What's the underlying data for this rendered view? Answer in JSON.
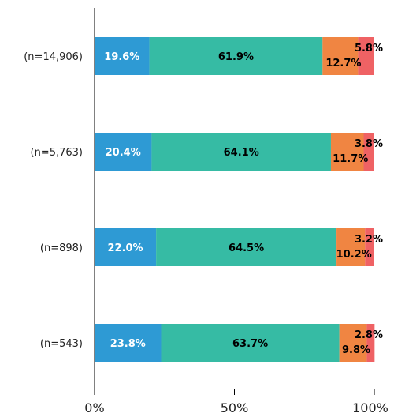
{
  "chart_data": {
    "type": "bar",
    "orientation": "horizontal",
    "stacked": true,
    "categories": [
      "(n=14,906)",
      "(n=5,763)",
      "(n=898)",
      "(n=543)"
    ],
    "series": [
      {
        "color": "#2e9ad4",
        "values": [
          19.6,
          20.4,
          22.0,
          23.8
        ],
        "labels": [
          "19.6%",
          "20.4%",
          "22.0%",
          "23.8%"
        ]
      },
      {
        "color": "#36bba4",
        "values": [
          61.9,
          64.1,
          64.5,
          63.7
        ],
        "labels": [
          "61.9%",
          "64.1%",
          "64.5%",
          "63.7%"
        ]
      },
      {
        "color": "#f08542",
        "values": [
          12.7,
          11.7,
          10.2,
          9.8
        ],
        "labels": [
          "12.7%",
          "11.7%",
          "10.2%",
          "9.8%"
        ]
      },
      {
        "color": "#ef6264",
        "values": [
          5.8,
          3.8,
          3.2,
          2.8
        ],
        "labels": [
          "5.8%",
          "3.8%",
          "3.2%",
          "2.8%"
        ]
      }
    ],
    "xlim": [
      0,
      100
    ],
    "x_ticks": [
      "0%",
      "50%",
      "100%"
    ],
    "grid": false,
    "legend": "none"
  }
}
